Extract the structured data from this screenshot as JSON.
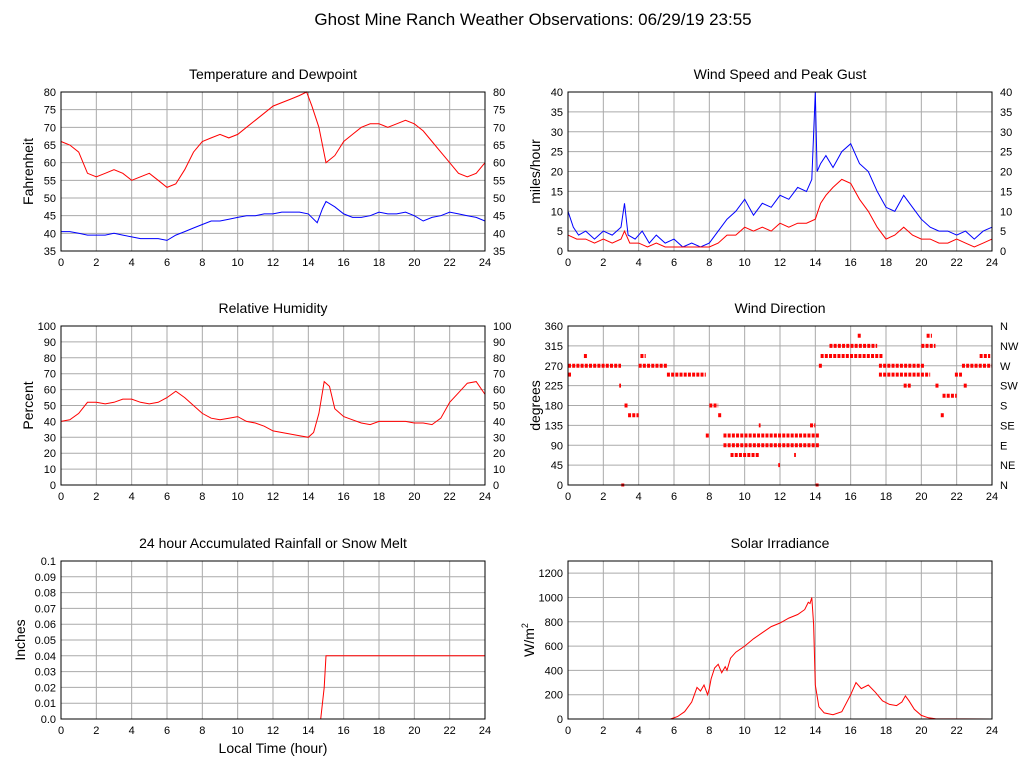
{
  "page_title": "Ghost Mine Ranch Weather Observations: 06/29/19 23:55",
  "colors": {
    "red": "#ff0000",
    "blue": "#0000ff",
    "grid": "#aaaaaa",
    "frame": "#000000"
  },
  "xlabel_shared": "Local Time (hour)",
  "chart_data": [
    {
      "id": "temp",
      "type": "line",
      "title": "Temperature and Dewpoint",
      "ylabel": "Fahrenheit",
      "xlim": [
        0,
        24
      ],
      "ylim": [
        35,
        80
      ],
      "xticks": [
        0,
        2,
        4,
        6,
        8,
        10,
        12,
        14,
        16,
        18,
        20,
        22,
        24
      ],
      "yticks": [
        35,
        40,
        45,
        50,
        55,
        60,
        65,
        70,
        75,
        80
      ],
      "right_axis": true,
      "series": [
        {
          "name": "Temperature",
          "color": "#ff0000",
          "x": [
            0,
            0.5,
            1,
            1.5,
            2,
            2.5,
            3,
            3.5,
            4,
            4.5,
            5,
            5.5,
            6,
            6.5,
            7,
            7.5,
            8,
            8.5,
            9,
            9.5,
            10,
            10.5,
            11,
            11.5,
            12,
            12.5,
            13,
            13.5,
            13.9,
            14.2,
            14.6,
            15,
            15.5,
            16,
            16.5,
            17,
            17.5,
            18,
            18.5,
            19,
            19.5,
            20,
            20.5,
            21,
            21.5,
            22,
            22.5,
            23,
            23.5,
            24
          ],
          "values": [
            66,
            65,
            63,
            57,
            56,
            57,
            58,
            57,
            55,
            56,
            57,
            55,
            53,
            54,
            58,
            63,
            66,
            67,
            68,
            67,
            68,
            70,
            72,
            74,
            76,
            77,
            78,
            79,
            80,
            76,
            70,
            60,
            62,
            66,
            68,
            70,
            71,
            71,
            70,
            71,
            72,
            71,
            69,
            66,
            63,
            60,
            57,
            56,
            57,
            60
          ]
        },
        {
          "name": "Dewpoint",
          "color": "#0000ff",
          "x": [
            0,
            0.5,
            1,
            1.5,
            2,
            2.5,
            3,
            3.5,
            4,
            4.5,
            5,
            5.5,
            6,
            6.5,
            7,
            7.5,
            8,
            8.5,
            9,
            9.5,
            10,
            10.5,
            11,
            11.5,
            12,
            12.5,
            13,
            13.5,
            14,
            14.5,
            14.8,
            15,
            15.5,
            16,
            16.5,
            17,
            17.5,
            18,
            18.5,
            19,
            19.5,
            20,
            20.5,
            21,
            21.5,
            22,
            22.5,
            23,
            23.5,
            24
          ],
          "values": [
            40.5,
            40.5,
            40,
            39.5,
            39.5,
            39.5,
            40,
            39.5,
            39,
            38.5,
            38.5,
            38.5,
            38,
            39.5,
            40.5,
            41.5,
            42.5,
            43.5,
            43.5,
            44,
            44.5,
            45,
            45,
            45.5,
            45.5,
            46,
            46,
            46,
            45.5,
            43,
            47,
            49,
            47.5,
            45.5,
            44.5,
            44.5,
            45,
            46,
            45.5,
            45.5,
            46,
            45,
            43.5,
            44.5,
            45,
            46,
            45.5,
            45,
            44.5,
            43.5
          ]
        }
      ]
    },
    {
      "id": "wind",
      "type": "line",
      "title": "Wind Speed and Peak Gust",
      "ylabel": "miles/hour",
      "xlim": [
        0,
        24
      ],
      "ylim": [
        0,
        40
      ],
      "xticks": [
        0,
        2,
        4,
        6,
        8,
        10,
        12,
        14,
        16,
        18,
        20,
        22,
        24
      ],
      "yticks": [
        0,
        5,
        10,
        15,
        20,
        25,
        30,
        35,
        40
      ],
      "right_axis": true,
      "series": [
        {
          "name": "Peak Gust",
          "color": "#0000ff",
          "x": [
            0,
            0.3,
            0.6,
            1,
            1.5,
            2,
            2.5,
            3,
            3.2,
            3.4,
            3.8,
            4.2,
            4.6,
            5,
            5.5,
            6,
            6.5,
            7,
            7.5,
            8,
            8.5,
            9,
            9.5,
            10,
            10.5,
            11,
            11.5,
            12,
            12.5,
            13,
            13.5,
            13.8,
            14,
            14.1,
            14.3,
            14.6,
            15,
            15.5,
            16,
            16.5,
            17,
            17.5,
            18,
            18.5,
            19,
            19.5,
            20,
            20.5,
            21,
            21.5,
            22,
            22.5,
            23,
            23.5,
            24
          ],
          "values": [
            10,
            6,
            4,
            5,
            3,
            5,
            4,
            6,
            12,
            4,
            3,
            5,
            2,
            4,
            2,
            3,
            1,
            2,
            1,
            2,
            5,
            8,
            10,
            13,
            9,
            12,
            11,
            14,
            13,
            16,
            15,
            18,
            40,
            20,
            22,
            24,
            21,
            25,
            27,
            22,
            20,
            15,
            11,
            10,
            14,
            11,
            8,
            6,
            5,
            5,
            4,
            5,
            3,
            5,
            6
          ]
        },
        {
          "name": "Wind Speed",
          "color": "#ff0000",
          "x": [
            0,
            0.5,
            1,
            1.5,
            2,
            2.5,
            3,
            3.2,
            3.5,
            4,
            4.5,
            5,
            5.5,
            6,
            6.5,
            7,
            7.5,
            8,
            8.5,
            9,
            9.5,
            10,
            10.5,
            11,
            11.5,
            12,
            12.5,
            13,
            13.5,
            14,
            14.3,
            14.6,
            15,
            15.5,
            16,
            16.5,
            17,
            17.5,
            18,
            18.5,
            19,
            19.5,
            20,
            20.5,
            21,
            21.5,
            22,
            22.5,
            23,
            23.5,
            24
          ],
          "values": [
            4,
            3,
            3,
            2,
            3,
            2,
            3,
            5,
            2,
            2,
            1,
            2,
            1,
            1,
            1,
            1,
            1,
            1,
            2,
            4,
            4,
            6,
            5,
            6,
            5,
            7,
            6,
            7,
            7,
            8,
            12,
            14,
            16,
            18,
            17,
            13,
            10,
            6,
            3,
            4,
            6,
            4,
            3,
            3,
            2,
            2,
            3,
            2,
            1,
            2,
            3
          ]
        }
      ]
    },
    {
      "id": "rh",
      "type": "line",
      "title": "Relative Humidity",
      "ylabel": "Percent",
      "xlim": [
        0,
        24
      ],
      "ylim": [
        0,
        100
      ],
      "xticks": [
        0,
        2,
        4,
        6,
        8,
        10,
        12,
        14,
        16,
        18,
        20,
        22,
        24
      ],
      "yticks": [
        0,
        10,
        20,
        30,
        40,
        50,
        60,
        70,
        80,
        90,
        100
      ],
      "right_axis": true,
      "series": [
        {
          "name": "Relative Humidity",
          "color": "#ff0000",
          "x": [
            0,
            0.5,
            1,
            1.5,
            2,
            2.5,
            3,
            3.5,
            4,
            4.5,
            5,
            5.5,
            6,
            6.5,
            7,
            7.5,
            8,
            8.5,
            9,
            9.5,
            10,
            10.5,
            11,
            11.5,
            12,
            12.5,
            13,
            13.5,
            14,
            14.3,
            14.6,
            14.9,
            15.2,
            15.5,
            16,
            16.5,
            17,
            17.5,
            18,
            18.5,
            19,
            19.5,
            20,
            20.5,
            21,
            21.5,
            22,
            22.5,
            23,
            23.5,
            24
          ],
          "values": [
            40,
            41,
            45,
            52,
            52,
            51,
            52,
            54,
            54,
            52,
            51,
            52,
            55,
            59,
            55,
            50,
            45,
            42,
            41,
            42,
            43,
            40,
            39,
            37,
            34,
            33,
            32,
            31,
            30,
            33,
            45,
            65,
            62,
            48,
            43,
            41,
            39,
            38,
            40,
            40,
            40,
            40,
            39,
            39,
            38,
            42,
            52,
            58,
            64,
            65,
            57
          ]
        }
      ]
    },
    {
      "id": "wdir",
      "type": "scatter",
      "title": "Wind Direction",
      "ylabel": "degrees",
      "xlim": [
        0,
        24
      ],
      "ylim": [
        0,
        360
      ],
      "xticks": [
        0,
        2,
        4,
        6,
        8,
        10,
        12,
        14,
        16,
        18,
        20,
        22,
        24
      ],
      "yticks": [
        0,
        45,
        90,
        135,
        180,
        225,
        270,
        315,
        360
      ],
      "right_labels": [
        "N",
        "NE",
        "E",
        "SE",
        "S",
        "SW",
        "W",
        "NW",
        "N"
      ],
      "series": [
        {
          "name": "Wind Direction",
          "color": "#ff0000",
          "segments": [
            {
              "y": 250,
              "x0": 0.0,
              "x1": 0.2
            },
            {
              "y": 270,
              "x0": 0.0,
              "x1": 3.0
            },
            {
              "y": 292,
              "x0": 0.9,
              "x1": 1.1
            },
            {
              "y": 225,
              "x0": 2.9,
              "x1": 3.0
            },
            {
              "y": 180,
              "x0": 3.2,
              "x1": 3.4
            },
            {
              "y": 158,
              "x0": 3.4,
              "x1": 4.0
            },
            {
              "y": 270,
              "x0": 4.0,
              "x1": 5.6
            },
            {
              "y": 292,
              "x0": 4.1,
              "x1": 4.4
            },
            {
              "y": 250,
              "x0": 5.6,
              "x1": 7.8
            },
            {
              "y": 112,
              "x0": 7.8,
              "x1": 8.0
            },
            {
              "y": 180,
              "x0": 8.0,
              "x1": 8.5
            },
            {
              "y": 158,
              "x0": 8.5,
              "x1": 8.7
            },
            {
              "y": 112,
              "x0": 8.8,
              "x1": 14.2
            },
            {
              "y": 90,
              "x0": 8.8,
              "x1": 14.2
            },
            {
              "y": 68,
              "x0": 9.2,
              "x1": 10.8
            },
            {
              "y": 135,
              "x0": 10.8,
              "x1": 10.9
            },
            {
              "y": 45,
              "x0": 11.9,
              "x1": 12.0
            },
            {
              "y": 68,
              "x0": 12.8,
              "x1": 12.9
            },
            {
              "y": 135,
              "x0": 13.7,
              "x1": 14.0
            },
            {
              "y": 270,
              "x0": 14.2,
              "x1": 14.4
            },
            {
              "y": 292,
              "x0": 14.3,
              "x1": 17.8
            },
            {
              "y": 315,
              "x0": 14.8,
              "x1": 17.5
            },
            {
              "y": 338,
              "x0": 16.4,
              "x1": 16.6
            },
            {
              "y": 270,
              "x0": 17.6,
              "x1": 20.2
            },
            {
              "y": 250,
              "x0": 17.6,
              "x1": 20.5
            },
            {
              "y": 225,
              "x0": 19.0,
              "x1": 19.4
            },
            {
              "y": 315,
              "x0": 20.0,
              "x1": 20.8
            },
            {
              "y": 338,
              "x0": 20.3,
              "x1": 20.6
            },
            {
              "y": 225,
              "x0": 20.8,
              "x1": 21.0
            },
            {
              "y": 158,
              "x0": 21.1,
              "x1": 21.3
            },
            {
              "y": 202,
              "x0": 21.2,
              "x1": 22.0
            },
            {
              "y": 250,
              "x0": 21.9,
              "x1": 22.3
            },
            {
              "y": 225,
              "x0": 22.4,
              "x1": 22.6
            },
            {
              "y": 270,
              "x0": 22.3,
              "x1": 24.0
            },
            {
              "y": 292,
              "x0": 23.3,
              "x1": 23.9
            }
          ],
          "points": [
            {
              "x": 3.1,
              "y": 0
            },
            {
              "x": 14.1,
              "y": 0
            }
          ]
        }
      ]
    },
    {
      "id": "rain",
      "type": "line",
      "title": "24 hour Accumulated Rainfall or Snow Melt",
      "ylabel": "Inches",
      "xlabel": "Local Time (hour)",
      "xlim": [
        0,
        24
      ],
      "ylim": [
        0,
        0.1
      ],
      "xticks": [
        0,
        2,
        4,
        6,
        8,
        10,
        12,
        14,
        16,
        18,
        20,
        22,
        24
      ],
      "yticks": [
        0,
        0.01,
        0.02,
        0.03,
        0.04,
        0.05,
        0.06,
        0.07,
        0.08,
        0.09,
        0.1
      ],
      "ytick_labels": [
        "0.0",
        "0.01",
        "0.02",
        "0.03",
        "0.04",
        "0.05",
        "0.06",
        "0.07",
        "0.08",
        "0.09",
        "0.1"
      ],
      "right_axis": false,
      "series": [
        {
          "name": "Rainfall",
          "color": "#ff0000",
          "x": [
            0,
            14.7,
            14.9,
            15.0,
            24
          ],
          "values": [
            0,
            0,
            0.02,
            0.04,
            0.04
          ]
        }
      ]
    },
    {
      "id": "solar",
      "type": "line",
      "title": "Solar Irradiance",
      "ylabel": "W/m",
      "ylabel_sup": "2",
      "xlim": [
        0,
        24
      ],
      "ylim": [
        0,
        1300
      ],
      "xticks": [
        0,
        2,
        4,
        6,
        8,
        10,
        12,
        14,
        16,
        18,
        20,
        22,
        24
      ],
      "yticks": [
        0,
        200,
        400,
        600,
        800,
        1000,
        1200
      ],
      "right_axis": false,
      "series": [
        {
          "name": "Solar Irradiance",
          "color": "#ff0000",
          "x": [
            0,
            5.8,
            6.2,
            6.6,
            7.0,
            7.3,
            7.5,
            7.7,
            7.9,
            8.0,
            8.1,
            8.3,
            8.5,
            8.7,
            8.9,
            9.0,
            9.2,
            9.5,
            10,
            10.5,
            11,
            11.5,
            12,
            12.5,
            13,
            13.4,
            13.6,
            13.7,
            13.8,
            13.9,
            14.0,
            14.2,
            14.5,
            15.0,
            15.5,
            16.0,
            16.3,
            16.6,
            17.0,
            17.4,
            17.8,
            18.2,
            18.6,
            18.9,
            19.1,
            19.3,
            19.6,
            20.0,
            20.4,
            20.8,
            24
          ],
          "values": [
            0,
            0,
            20,
            60,
            140,
            260,
            230,
            280,
            200,
            250,
            330,
            420,
            450,
            380,
            430,
            400,
            500,
            550,
            600,
            660,
            710,
            760,
            790,
            830,
            860,
            900,
            960,
            950,
            1000,
            780,
            280,
            100,
            50,
            35,
            60,
            200,
            300,
            250,
            280,
            220,
            150,
            120,
            110,
            140,
            190,
            150,
            80,
            30,
            10,
            2,
            0
          ]
        }
      ]
    }
  ]
}
